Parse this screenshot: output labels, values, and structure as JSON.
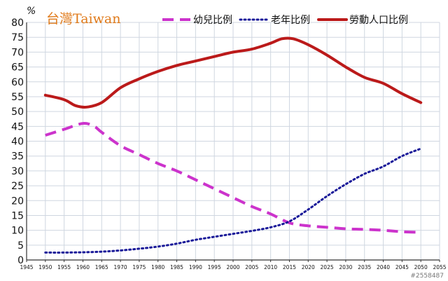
{
  "chart_data": {
    "type": "line",
    "title": "台灣Taiwan",
    "ylabel": "%",
    "xlabel": "",
    "x": [
      1945,
      1950,
      1955,
      1960,
      1965,
      1970,
      1975,
      1980,
      1985,
      1990,
      1995,
      2000,
      2005,
      2010,
      2015,
      2020,
      2025,
      2030,
      2035,
      2040,
      2045,
      2050,
      2055
    ],
    "x_tick_labels": [
      "1945",
      "1950",
      "1955",
      "1960",
      "1965",
      "1970",
      "1975",
      "1980",
      "1985",
      "1990",
      "1995",
      "2000",
      "2005",
      "2010",
      "2015",
      "2020",
      "2025",
      "2030",
      "2035",
      "2040",
      "2045",
      "2050",
      "2055"
    ],
    "y_tick_labels": [
      "0",
      "5",
      "10",
      "15",
      "20",
      "25",
      "30",
      "35",
      "40",
      "45",
      "50",
      "55",
      "60",
      "65",
      "70",
      "75",
      "80"
    ],
    "xlim": [
      1945,
      2055
    ],
    "ylim": [
      0,
      80
    ],
    "grid": true,
    "legend_position": "top",
    "series": [
      {
        "name": "幼兒比例",
        "color": "#cc33cc",
        "style": "dashed",
        "points": [
          [
            1950,
            42
          ],
          [
            1955,
            44
          ],
          [
            1960,
            46
          ],
          [
            1963,
            45
          ],
          [
            1965,
            43
          ],
          [
            1970,
            38.5
          ],
          [
            1975,
            35.5
          ],
          [
            1980,
            32.5
          ],
          [
            1985,
            30
          ],
          [
            1990,
            27
          ],
          [
            1995,
            24
          ],
          [
            2000,
            21
          ],
          [
            2005,
            18
          ],
          [
            2010,
            15.5
          ],
          [
            2015,
            12.5
          ],
          [
            2020,
            11.5
          ],
          [
            2025,
            11
          ],
          [
            2030,
            10.5
          ],
          [
            2035,
            10.3
          ],
          [
            2040,
            10
          ],
          [
            2045,
            9.5
          ],
          [
            2050,
            9.3
          ]
        ]
      },
      {
        "name": "老年比例",
        "color": "#1a1a99",
        "style": "dotted",
        "points": [
          [
            1950,
            2.5
          ],
          [
            1955,
            2.5
          ],
          [
            1960,
            2.6
          ],
          [
            1965,
            2.8
          ],
          [
            1970,
            3.2
          ],
          [
            1975,
            3.8
          ],
          [
            1980,
            4.5
          ],
          [
            1985,
            5.5
          ],
          [
            1990,
            6.8
          ],
          [
            1995,
            7.8
          ],
          [
            2000,
            8.8
          ],
          [
            2005,
            9.8
          ],
          [
            2010,
            11
          ],
          [
            2015,
            13
          ],
          [
            2020,
            17
          ],
          [
            2025,
            21.5
          ],
          [
            2030,
            25.5
          ],
          [
            2035,
            29
          ],
          [
            2040,
            31.5
          ],
          [
            2045,
            35
          ],
          [
            2050,
            37.5
          ]
        ]
      },
      {
        "name": "勞動人口比例",
        "color": "#bb1a1a",
        "style": "solid",
        "points": [
          [
            1950,
            55.5
          ],
          [
            1955,
            54
          ],
          [
            1958,
            52
          ],
          [
            1961,
            51.5
          ],
          [
            1965,
            53
          ],
          [
            1970,
            58
          ],
          [
            1975,
            61
          ],
          [
            1980,
            63.5
          ],
          [
            1985,
            65.5
          ],
          [
            1990,
            67
          ],
          [
            1995,
            68.5
          ],
          [
            2000,
            70
          ],
          [
            2005,
            71
          ],
          [
            2010,
            73
          ],
          [
            2013,
            74.5
          ],
          [
            2016,
            74.5
          ],
          [
            2020,
            72.5
          ],
          [
            2025,
            69
          ],
          [
            2030,
            65
          ],
          [
            2035,
            61.5
          ],
          [
            2040,
            59.5
          ],
          [
            2045,
            56
          ],
          [
            2050,
            53
          ]
        ]
      }
    ]
  },
  "watermark": "#2558487"
}
